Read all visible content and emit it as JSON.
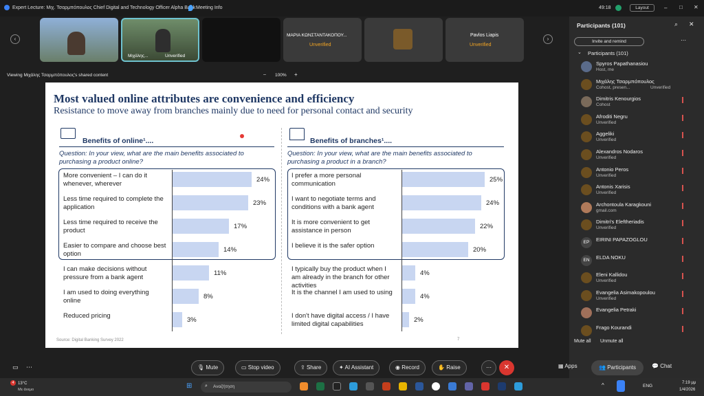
{
  "window": {
    "title": "Expert Lecture: Μιχ. Τσαρμπόπουλος Chief Digital and Technology Officer Alpha Bank",
    "meeting_info": "Meeting Info",
    "timer": "49:18",
    "layout_label": "Layout"
  },
  "participants_strip": [
    {
      "name": "",
      "status": ""
    },
    {
      "name": "Μιχάλης...",
      "status": "Unverified"
    },
    {
      "name": "",
      "status": ""
    },
    {
      "name": "ΜΑΡΙΑ ΚΩΝΣΤΑΝΤΑΚΟΠΟΥ...",
      "status": "Unverified"
    },
    {
      "name": "",
      "status": ""
    },
    {
      "name": "Pavlos Liapis",
      "status": "Unverified"
    }
  ],
  "share_bar": {
    "label": "Viewing Μιχάλης Τσαρμπόπουλος's shared content",
    "zoom": "100%"
  },
  "slide": {
    "title": "Most valued online attributes are convenience and efficiency",
    "subtitle": "Resistance to move away from branches mainly due to need for personal contact and security",
    "left": {
      "heading": "Benefits of online¹....",
      "question": "Question: In your view, what are the main benefits associated to purchasing a product online?",
      "rows": [
        {
          "label": "More convenient – I can do it whenever, wherever",
          "pct": "24%",
          "value": 24
        },
        {
          "label": "Less time required to complete the application",
          "pct": "23%",
          "value": 23
        },
        {
          "label": "Less time required to receive the product",
          "pct": "17%",
          "value": 17
        },
        {
          "label": "Easier to compare and choose best option",
          "pct": "14%",
          "value": 14
        },
        {
          "label": "I can make decisions without pressure from a bank agent",
          "pct": "11%",
          "value": 11
        },
        {
          "label": "I am used to doing everything online",
          "pct": "8%",
          "value": 8
        },
        {
          "label": "Reduced pricing",
          "pct": "3%",
          "value": 3
        }
      ]
    },
    "right": {
      "heading": "Benefits of branches¹....",
      "question": "Question: In your view, what are the main benefits associated to purchasing a product in a branch?",
      "rows": [
        {
          "label": "I prefer a more personal communication",
          "pct": "25%",
          "value": 25
        },
        {
          "label": "I want to negotiate terms and conditions with a bank agent",
          "pct": "24%",
          "value": 24
        },
        {
          "label": "It is more convenient to get assistance in person",
          "pct": "22%",
          "value": 22
        },
        {
          "label": "I believe it is the safer option",
          "pct": "20%",
          "value": 20
        },
        {
          "label": "I typically buy the product when I am already in the branch for other activities",
          "pct": "4%",
          "value": 4
        },
        {
          "label": "It is the channel I am used to using",
          "pct": "4%",
          "value": 4
        },
        {
          "label": "I don't have digital access / I have limited digital capabilities",
          "pct": "2%",
          "value": 2
        }
      ]
    },
    "source": "Source: Digital Banking Survey 2022",
    "page": "7"
  },
  "sidebar": {
    "title": "Participants (101)",
    "invite": "Invite and remind",
    "group": "Participants (101)",
    "people": [
      {
        "name": "Spyros Papathanasiou",
        "sub": "Host, me",
        "initials": ""
      },
      {
        "name": "Μιχάλης Τσαρμπόπουλος",
        "sub": "Cohost, presen...",
        "status": "Unverified",
        "initials": ""
      },
      {
        "name": "Dimitris Kenourgios",
        "sub": "Cohost",
        "initials": ""
      },
      {
        "name": "Afroditi Negru",
        "status": "Unverified",
        "initials": ""
      },
      {
        "name": "Aggeliki",
        "status": "Unverified",
        "initials": ""
      },
      {
        "name": "Alexandros Nodaros",
        "status": "Unverified",
        "initials": ""
      },
      {
        "name": "Antonio Peros",
        "status": "Unverified",
        "initials": ""
      },
      {
        "name": "Antonis Xarisis",
        "status": "Unverified",
        "initials": ""
      },
      {
        "name": "Archontoula Karagkouni",
        "sub": "gmail.com",
        "initials": ""
      },
      {
        "name": "Dimitri's Eleftheriadis",
        "status": "Unverified",
        "initials": ""
      },
      {
        "name": "EIRINI PAPAZOGLOU",
        "initials": "EP"
      },
      {
        "name": "ELDA NOKU",
        "initials": "EN"
      },
      {
        "name": "Eleni Kallidou",
        "status": "Unverified",
        "initials": ""
      },
      {
        "name": "Evangelia Asimakopoulou",
        "status": "Unverified",
        "initials": ""
      },
      {
        "name": "Evangelia Petraki",
        "initials": ""
      },
      {
        "name": "Frago Kourandi",
        "initials": ""
      }
    ],
    "mute_all": "Mute all",
    "unmute_all": "Unmute all"
  },
  "toolbar": {
    "mute": "Mute",
    "stop_video": "Stop video",
    "share": "Share",
    "ai": "AI Assistant",
    "record": "Record",
    "raise": "Raise",
    "apps": "Apps",
    "participants": "Participants",
    "chat": "Chat"
  },
  "taskbar": {
    "weather_temp": "13°C",
    "weather_desc": "Με άνεμο",
    "search": "Αναζήτηση",
    "lang": "ENG",
    "time": "7:19 μμ",
    "date": "1/4/2026",
    "badge": "4"
  }
}
